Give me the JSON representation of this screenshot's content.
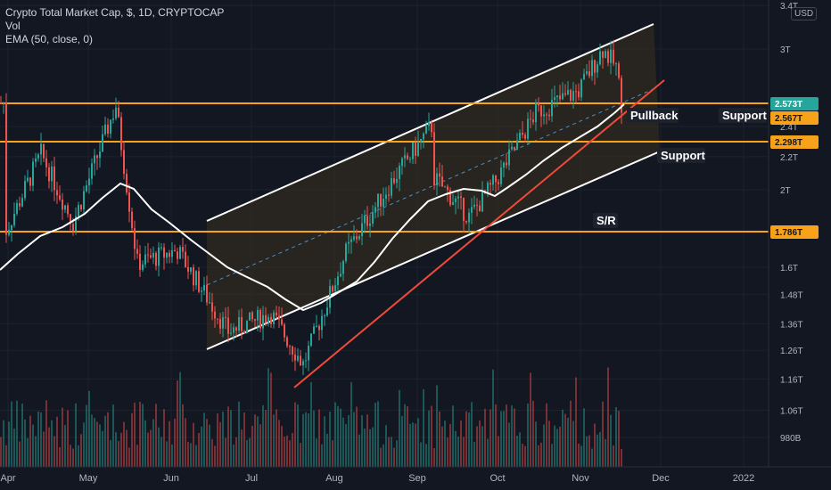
{
  "legend": {
    "symbol": "Crypto Total Market Cap, $, 1D, CRYPTOCAP",
    "volume": "Vol",
    "ema": "EMA (50, close, 0)"
  },
  "currency": "USD",
  "colors": {
    "background": "#131722",
    "up": "#26a69a",
    "down": "#ef5350",
    "level_line": "#f7a21b",
    "channel": "#ffffff",
    "trendline": "#f04b3a",
    "ema": "#ffffff",
    "midline": "#4a90c8",
    "channel_fill": "#3a2f1e"
  },
  "chart_data": {
    "type": "candlestick",
    "title": "Crypto Total Market Cap",
    "scale": "log",
    "ylabel": "USD",
    "y_ticks": [
      "3.4T",
      "3T",
      "2.4T",
      "2.2T",
      "2T",
      "1.6T",
      "1.48T",
      "1.36T",
      "1.26T",
      "1.16T",
      "1.06T",
      "980B"
    ],
    "x_ticks": [
      "Apr",
      "May",
      "Jun",
      "Jul",
      "Aug",
      "Sep",
      "Oct",
      "Nov",
      "Dec",
      "2022"
    ],
    "price_labels": [
      {
        "value": "2.573T",
        "color": "#26a69a"
      },
      {
        "value": "2.567T",
        "color": "#f7a21b"
      },
      {
        "value": "2.298T",
        "color": "#f7a21b"
      },
      {
        "value": "1.786T",
        "color": "#f7a21b"
      }
    ],
    "horizontal_levels": [
      2.567,
      2.298,
      1.786
    ],
    "annotations": [
      "Pullback",
      "Support",
      "Support",
      "S/R"
    ],
    "close_points": [
      {
        "date": "2021-03-31",
        "close": 1.78
      },
      {
        "date": "2021-04-13",
        "close": 2.22
      },
      {
        "date": "2021-04-25",
        "close": 1.82
      },
      {
        "date": "2021-05-11",
        "close": 2.55
      },
      {
        "date": "2021-05-19",
        "close": 1.62
      },
      {
        "date": "2021-06-03",
        "close": 1.68
      },
      {
        "date": "2021-06-22",
        "close": 1.33
      },
      {
        "date": "2021-07-08",
        "close": 1.4
      },
      {
        "date": "2021-07-20",
        "close": 1.21
      },
      {
        "date": "2021-08-05",
        "close": 1.67
      },
      {
        "date": "2021-08-23",
        "close": 2.07
      },
      {
        "date": "2021-09-06",
        "close": 2.4
      },
      {
        "date": "2021-09-07",
        "close": 2.07
      },
      {
        "date": "2021-09-20",
        "close": 1.85
      },
      {
        "date": "2021-09-30",
        "close": 2.05
      },
      {
        "date": "2021-10-15",
        "close": 2.5
      },
      {
        "date": "2021-10-31",
        "close": 2.66
      },
      {
        "date": "2021-11-09",
        "close": 3.0
      },
      {
        "date": "2021-11-14",
        "close": 2.85
      },
      {
        "date": "2021-11-16",
        "close": 2.57
      }
    ]
  }
}
